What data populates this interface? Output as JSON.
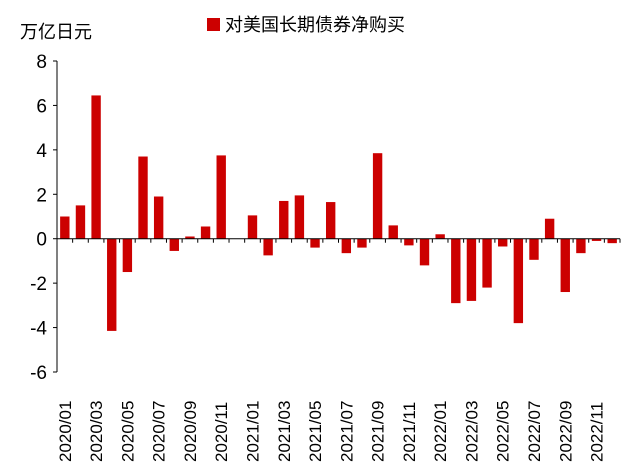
{
  "chart_data": {
    "type": "bar",
    "ylabel": "万亿日元",
    "legend": {
      "position": "top-center"
    },
    "colors": {
      "bar": "#cc0000",
      "axis": "#000000"
    },
    "ylim": [
      -6,
      8
    ],
    "yticks": [
      8,
      6,
      4,
      2,
      0,
      -2,
      -4,
      -6
    ],
    "grid": false,
    "categories": [
      "2020/01",
      "2020/02",
      "2020/03",
      "2020/04",
      "2020/05",
      "2020/06",
      "2020/07",
      "2020/08",
      "2020/09",
      "2020/10",
      "2020/11",
      "2020/12",
      "2021/01",
      "2021/02",
      "2021/03",
      "2021/04",
      "2021/05",
      "2021/06",
      "2021/07",
      "2021/08",
      "2021/09",
      "2021/10",
      "2021/11",
      "2021/12",
      "2022/01",
      "2022/02",
      "2022/03",
      "2022/04",
      "2022/05",
      "2022/06",
      "2022/07",
      "2022/08",
      "2022/09",
      "2022/10",
      "2022/11",
      "2022/12"
    ],
    "xtick_labels": [
      "2020/01",
      "2020/03",
      "2020/05",
      "2020/07",
      "2020/09",
      "2020/11",
      "2021/01",
      "2021/03",
      "2021/05",
      "2021/07",
      "2021/09",
      "2021/11",
      "2022/01",
      "2022/03",
      "2022/05",
      "2022/07",
      "2022/09",
      "2022/11"
    ],
    "series": [
      {
        "name": "对美国长期债券净购买",
        "values": [
          1.0,
          1.5,
          6.45,
          -4.15,
          -1.5,
          3.7,
          1.9,
          -0.55,
          0.1,
          0.55,
          3.75,
          0.0,
          1.05,
          -0.75,
          1.7,
          1.95,
          -0.4,
          1.65,
          -0.65,
          -0.4,
          3.85,
          0.6,
          -0.3,
          -1.2,
          0.2,
          -2.9,
          -2.8,
          -2.2,
          -0.35,
          -3.8,
          -0.95,
          0.9,
          -2.4,
          -0.65,
          -0.1,
          -0.2
        ]
      }
    ]
  }
}
